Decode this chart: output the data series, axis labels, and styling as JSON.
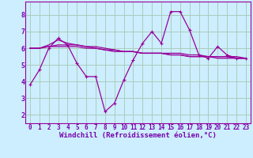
{
  "bg_color": "#cceeff",
  "grid_color": "#aaccbb",
  "line_color": "#990099",
  "xlabel": "Windchill (Refroidissement éolien,°C)",
  "ylim": [
    1.5,
    8.8
  ],
  "xlim": [
    -0.5,
    23.5
  ],
  "yticks": [
    2,
    3,
    4,
    5,
    6,
    7,
    8
  ],
  "xticks": [
    0,
    1,
    2,
    3,
    4,
    5,
    6,
    7,
    8,
    9,
    10,
    11,
    12,
    13,
    14,
    15,
    16,
    17,
    18,
    19,
    20,
    21,
    22,
    23
  ],
  "series": [
    [
      3.8,
      4.7,
      6.0,
      6.6,
      6.2,
      5.1,
      4.3,
      4.3,
      2.2,
      2.7,
      4.1,
      5.3,
      6.3,
      7.0,
      6.3,
      8.2,
      8.2,
      7.1,
      5.6,
      5.4,
      6.1,
      5.6,
      5.4,
      5.4
    ],
    [
      6.0,
      6.0,
      6.2,
      6.5,
      6.3,
      6.2,
      6.1,
      6.0,
      5.9,
      5.8,
      5.8,
      5.8,
      5.7,
      5.7,
      5.7,
      5.7,
      5.7,
      5.6,
      5.6,
      5.5,
      5.5,
      5.5,
      5.5,
      5.4
    ],
    [
      6.0,
      6.0,
      6.1,
      6.1,
      6.1,
      6.1,
      6.0,
      6.0,
      5.9,
      5.9,
      5.8,
      5.8,
      5.7,
      5.7,
      5.7,
      5.6,
      5.6,
      5.5,
      5.5,
      5.5,
      5.4,
      5.4,
      5.4,
      5.4
    ],
    [
      6.0,
      6.0,
      6.1,
      6.2,
      6.2,
      6.2,
      6.1,
      6.1,
      6.0,
      5.9,
      5.8,
      5.8,
      5.7,
      5.7,
      5.7,
      5.6,
      5.6,
      5.5,
      5.5,
      5.5,
      5.5,
      5.5,
      5.4,
      5.4
    ]
  ],
  "tick_color": "#7700aa",
  "xlabel_fontsize": 6.5,
  "tick_fontsize": 5.5
}
